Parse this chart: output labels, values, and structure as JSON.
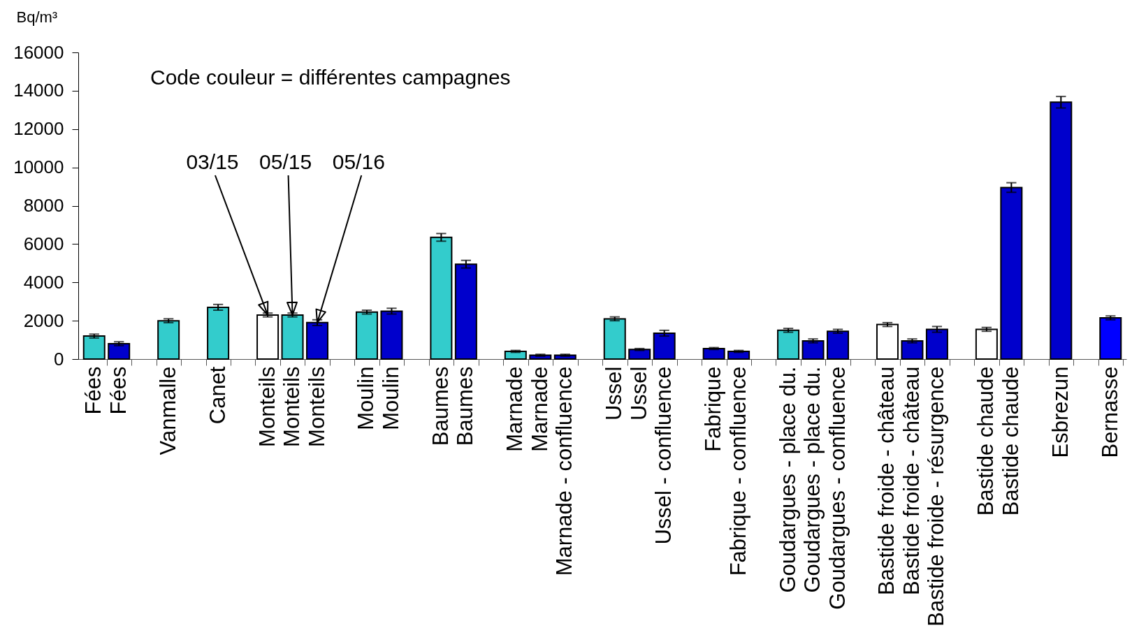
{
  "chart_data": {
    "type": "bar",
    "ylabel": "Bq/m³",
    "annotations": [
      "Code couleur = différentes campagnes"
    ],
    "categories": [
      "Fées",
      "Fées",
      null,
      "Vanmalle",
      null,
      "Canet",
      null,
      "Monteils",
      "Monteils",
      "Monteils",
      null,
      "Moulin",
      "Moulin",
      null,
      "Baumes",
      "Baumes",
      null,
      "Marnade",
      "Marnade",
      "Marnade - confluence",
      null,
      "Ussel",
      "Ussel",
      "Ussel - confluence",
      null,
      "Fabrique",
      "Fabrique - confluence",
      null,
      "Goudargues - place du.",
      "Goudargues - place du.",
      "Goudargues - confluence",
      null,
      "Bastide froide - château",
      "Bastide froide - château",
      "Bastide froide - résurgence",
      null,
      "Bastide chaude",
      "Bastide chaude",
      null,
      "Esbrezun",
      null,
      "Bernasse"
    ],
    "series": [
      {
        "name": "03/15",
        "color": "#ffffff",
        "values": [
          null,
          null,
          null,
          null,
          null,
          null,
          null,
          2300,
          null,
          null,
          null,
          null,
          null,
          null,
          null,
          null,
          null,
          null,
          null,
          null,
          null,
          null,
          null,
          null,
          null,
          null,
          null,
          null,
          null,
          null,
          null,
          null,
          1800,
          null,
          null,
          null,
          1550,
          null,
          null,
          null,
          null,
          null
        ],
        "errors": [
          null,
          null,
          null,
          null,
          null,
          null,
          null,
          100,
          null,
          null,
          null,
          null,
          null,
          null,
          null,
          null,
          null,
          null,
          null,
          null,
          null,
          null,
          null,
          null,
          null,
          null,
          null,
          null,
          null,
          null,
          null,
          null,
          100,
          null,
          null,
          null,
          100,
          null,
          null,
          null,
          null,
          null
        ]
      },
      {
        "name": "05/15",
        "color": "#33cccc",
        "values": [
          1200,
          null,
          null,
          2000,
          null,
          2700,
          null,
          null,
          2300,
          null,
          null,
          2450,
          null,
          null,
          6350,
          null,
          null,
          400,
          null,
          null,
          null,
          2100,
          null,
          null,
          null,
          null,
          null,
          null,
          1500,
          null,
          null,
          null,
          null,
          null,
          null,
          null,
          null,
          null,
          null,
          null,
          null,
          null
        ],
        "errors": [
          100,
          null,
          null,
          100,
          null,
          150,
          null,
          null,
          100,
          null,
          null,
          100,
          null,
          null,
          200,
          null,
          null,
          50,
          null,
          null,
          null,
          100,
          null,
          null,
          null,
          null,
          null,
          null,
          100,
          null,
          null,
          null,
          null,
          null,
          null,
          null,
          null,
          null,
          null,
          null,
          null,
          null
        ]
      },
      {
        "name": "05/16",
        "color": "#0000cc",
        "values": [
          null,
          800,
          null,
          null,
          null,
          null,
          null,
          null,
          null,
          1900,
          null,
          null,
          2500,
          null,
          null,
          4950,
          null,
          null,
          200,
          200,
          null,
          null,
          500,
          1350,
          null,
          550,
          400,
          null,
          null,
          950,
          1450,
          null,
          null,
          950,
          1550,
          null,
          null,
          8950,
          null,
          13400,
          null,
          null
        ],
        "errors": [
          null,
          100,
          null,
          null,
          null,
          null,
          null,
          null,
          null,
          150,
          null,
          null,
          150,
          null,
          null,
          200,
          null,
          null,
          50,
          50,
          null,
          null,
          50,
          150,
          null,
          50,
          50,
          null,
          null,
          100,
          100,
          null,
          null,
          100,
          150,
          null,
          null,
          250,
          null,
          300,
          null,
          null
        ]
      },
      {
        "color": "#0000ff",
        "values": [
          null,
          null,
          null,
          null,
          null,
          null,
          null,
          null,
          null,
          null,
          null,
          null,
          null,
          null,
          null,
          null,
          null,
          null,
          null,
          null,
          null,
          null,
          null,
          null,
          null,
          null,
          null,
          null,
          null,
          null,
          null,
          null,
          null,
          null,
          null,
          null,
          null,
          null,
          null,
          null,
          null,
          2150
        ],
        "errors": [
          null,
          null,
          null,
          null,
          null,
          null,
          null,
          null,
          null,
          null,
          null,
          null,
          null,
          null,
          null,
          null,
          null,
          null,
          null,
          null,
          null,
          null,
          null,
          null,
          null,
          null,
          null,
          null,
          null,
          null,
          null,
          null,
          null,
          null,
          null,
          null,
          null,
          null,
          null,
          null,
          null,
          100
        ]
      }
    ],
    "ylim": [
      0,
      16000
    ],
    "yticks": [
      0,
      2000,
      4000,
      6000,
      8000,
      10000,
      12000,
      14000,
      16000
    ],
    "grid": false
  }
}
